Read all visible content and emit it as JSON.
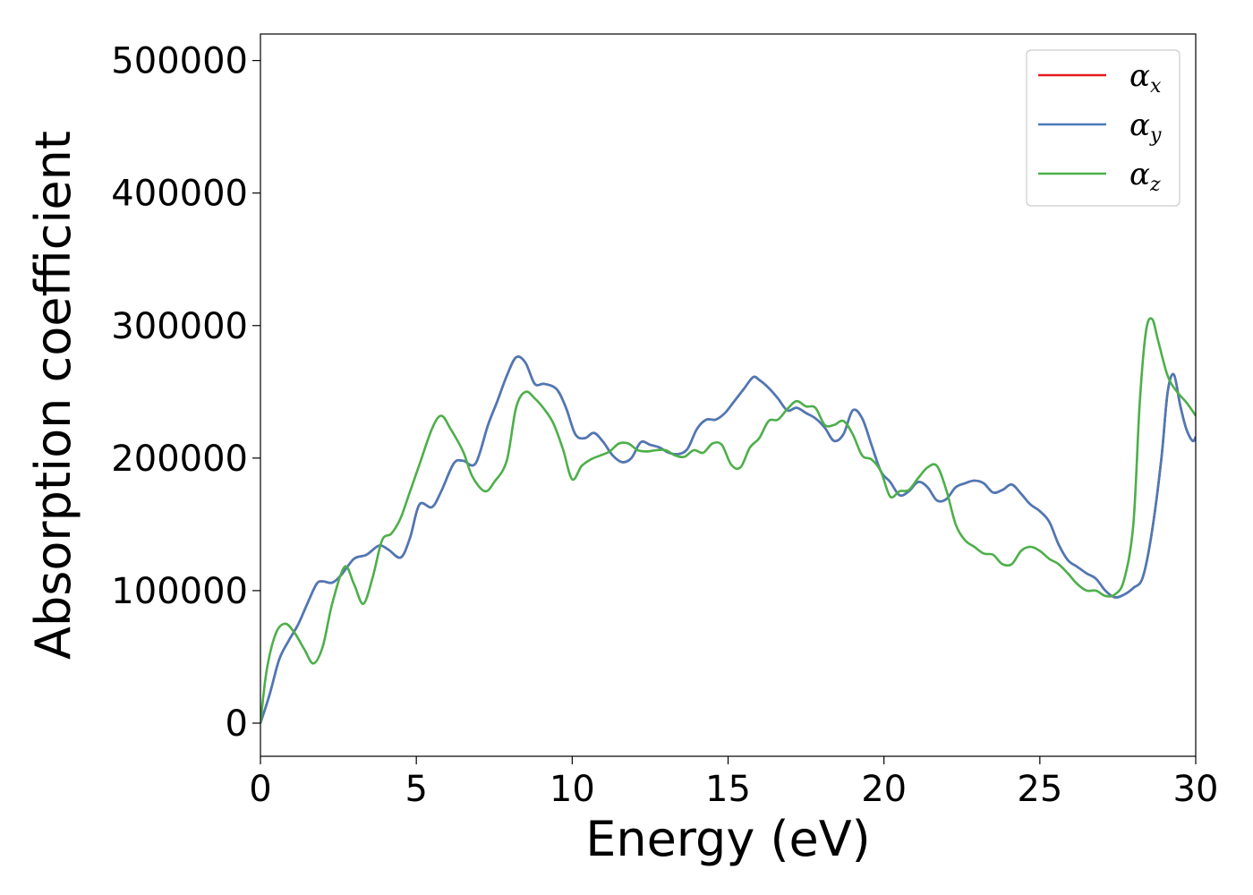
{
  "chart_data": {
    "type": "line",
    "title": "",
    "xlabel": "Energy (eV)",
    "ylabel": "Absorption coefficient",
    "xlim": [
      0,
      30
    ],
    "ylim": [
      -25000,
      520000
    ],
    "xticks": [
      0,
      5,
      10,
      15,
      20,
      25,
      30
    ],
    "yticks": [
      0,
      100000,
      200000,
      300000,
      400000,
      500000
    ],
    "xtick_labels": [
      "0",
      "5",
      "10",
      "15",
      "20",
      "25",
      "30"
    ],
    "ytick_labels": [
      "0",
      "100000",
      "200000",
      "300000",
      "400000",
      "500000"
    ],
    "grid": false,
    "legend_position": "top-right",
    "series": [
      {
        "name": "α_x",
        "legend_symbol": "α",
        "legend_sub": "x",
        "color": "#e41a1c",
        "x": [
          0,
          0.3,
          0.6,
          0.9,
          1.2,
          1.5,
          1.8,
          2.0,
          2.3,
          2.6,
          3.0,
          3.4,
          3.8,
          4.1,
          4.5,
          4.8,
          5.1,
          5.5,
          5.8,
          6.2,
          6.5,
          6.9,
          7.3,
          7.6,
          7.9,
          8.2,
          8.5,
          8.8,
          9.1,
          9.5,
          9.8,
          10.1,
          10.4,
          10.7,
          11.0,
          11.3,
          11.6,
          11.9,
          12.2,
          12.5,
          12.8,
          13.1,
          13.4,
          13.7,
          14.0,
          14.3,
          14.6,
          14.9,
          15.2,
          15.5,
          15.8,
          16.0,
          16.3,
          16.6,
          16.9,
          17.2,
          17.5,
          17.8,
          18.1,
          18.4,
          18.7,
          19.0,
          19.3,
          19.6,
          19.9,
          20.2,
          20.5,
          20.8,
          21.1,
          21.4,
          21.7,
          22.0,
          22.3,
          22.6,
          22.9,
          23.2,
          23.5,
          23.8,
          24.1,
          24.4,
          24.7,
          25.0,
          25.3,
          25.6,
          25.9,
          26.2,
          26.5,
          26.8,
          27.1,
          27.4,
          27.7,
          28.0,
          28.3,
          28.6,
          28.9,
          29.1,
          29.3,
          29.5,
          29.7,
          29.9,
          30.0
        ],
        "y": [
          0,
          22000,
          48000,
          62000,
          74000,
          90000,
          105000,
          107000,
          106000,
          112000,
          124000,
          127000,
          134000,
          131000,
          125000,
          140000,
          165000,
          163000,
          175000,
          196000,
          198000,
          196000,
          225000,
          243000,
          262000,
          276000,
          272000,
          256000,
          256000,
          252000,
          238000,
          218000,
          215000,
          219000,
          212000,
          202000,
          197000,
          200000,
          212000,
          210000,
          208000,
          204000,
          203000,
          207000,
          222000,
          229000,
          229000,
          234000,
          243000,
          252000,
          261000,
          259000,
          253000,
          245000,
          236000,
          238000,
          234000,
          230000,
          223000,
          213000,
          218000,
          236000,
          230000,
          210000,
          190000,
          182000,
          172000,
          175000,
          182000,
          178000,
          168000,
          169000,
          178000,
          181000,
          183000,
          181000,
          174000,
          176000,
          180000,
          173000,
          165000,
          160000,
          152000,
          135000,
          123000,
          118000,
          113000,
          109000,
          100000,
          95000,
          97000,
          102000,
          110000,
          145000,
          200000,
          250000,
          263000,
          240000,
          222000,
          213000,
          216000
        ]
      },
      {
        "name": "α_y",
        "legend_symbol": "α",
        "legend_sub": "y",
        "color": "#4a7ab8",
        "x": [
          0,
          0.3,
          0.6,
          0.9,
          1.2,
          1.5,
          1.8,
          2.0,
          2.3,
          2.6,
          3.0,
          3.4,
          3.8,
          4.1,
          4.5,
          4.8,
          5.1,
          5.5,
          5.8,
          6.2,
          6.5,
          6.9,
          7.3,
          7.6,
          7.9,
          8.2,
          8.5,
          8.8,
          9.1,
          9.5,
          9.8,
          10.1,
          10.4,
          10.7,
          11.0,
          11.3,
          11.6,
          11.9,
          12.2,
          12.5,
          12.8,
          13.1,
          13.4,
          13.7,
          14.0,
          14.3,
          14.6,
          14.9,
          15.2,
          15.5,
          15.8,
          16.0,
          16.3,
          16.6,
          16.9,
          17.2,
          17.5,
          17.8,
          18.1,
          18.4,
          18.7,
          19.0,
          19.3,
          19.6,
          19.9,
          20.2,
          20.5,
          20.8,
          21.1,
          21.4,
          21.7,
          22.0,
          22.3,
          22.6,
          22.9,
          23.2,
          23.5,
          23.8,
          24.1,
          24.4,
          24.7,
          25.0,
          25.3,
          25.6,
          25.9,
          26.2,
          26.5,
          26.8,
          27.1,
          27.4,
          27.7,
          28.0,
          28.3,
          28.6,
          28.9,
          29.1,
          29.3,
          29.5,
          29.7,
          29.9,
          30.0
        ],
        "y": [
          0,
          22000,
          48000,
          62000,
          74000,
          90000,
          105000,
          107000,
          106000,
          112000,
          124000,
          127000,
          134000,
          131000,
          125000,
          140000,
          165000,
          163000,
          175000,
          196000,
          198000,
          196000,
          225000,
          243000,
          262000,
          276000,
          272000,
          256000,
          256000,
          252000,
          238000,
          218000,
          215000,
          219000,
          212000,
          202000,
          197000,
          200000,
          212000,
          210000,
          208000,
          204000,
          203000,
          207000,
          222000,
          229000,
          229000,
          234000,
          243000,
          252000,
          261000,
          259000,
          253000,
          245000,
          236000,
          238000,
          234000,
          230000,
          223000,
          213000,
          218000,
          236000,
          230000,
          210000,
          190000,
          182000,
          172000,
          175000,
          182000,
          178000,
          168000,
          169000,
          178000,
          181000,
          183000,
          181000,
          174000,
          176000,
          180000,
          173000,
          165000,
          160000,
          152000,
          135000,
          123000,
          118000,
          113000,
          109000,
          100000,
          95000,
          97000,
          102000,
          110000,
          145000,
          200000,
          250000,
          263000,
          240000,
          222000,
          213000,
          216000
        ]
      },
      {
        "name": "α_z",
        "legend_symbol": "α",
        "legend_sub": "z",
        "color": "#4daf4a",
        "x": [
          0,
          0.2,
          0.5,
          0.8,
          1.1,
          1.4,
          1.7,
          2.0,
          2.3,
          2.7,
          3.0,
          3.3,
          3.6,
          3.9,
          4.2,
          4.5,
          4.8,
          5.1,
          5.5,
          5.8,
          6.1,
          6.5,
          6.8,
          7.2,
          7.5,
          7.9,
          8.2,
          8.5,
          8.8,
          9.1,
          9.4,
          9.7,
          10.0,
          10.3,
          10.6,
          10.9,
          11.2,
          11.5,
          11.8,
          12.1,
          12.4,
          12.7,
          13.0,
          13.3,
          13.6,
          13.9,
          14.2,
          14.5,
          14.8,
          15.1,
          15.4,
          15.7,
          16.0,
          16.3,
          16.6,
          16.9,
          17.2,
          17.5,
          17.8,
          18.1,
          18.4,
          18.7,
          19.0,
          19.3,
          19.6,
          19.9,
          20.2,
          20.5,
          20.8,
          21.1,
          21.4,
          21.7,
          22.0,
          22.3,
          22.6,
          22.9,
          23.2,
          23.5,
          23.8,
          24.1,
          24.4,
          24.7,
          25.0,
          25.3,
          25.6,
          25.9,
          26.2,
          26.5,
          26.8,
          27.1,
          27.4,
          27.7,
          28.0,
          28.2,
          28.4,
          28.6,
          28.8,
          29.1,
          29.4,
          29.7,
          30.0
        ],
        "y": [
          0,
          40000,
          68000,
          75000,
          68000,
          56000,
          45000,
          58000,
          90000,
          118000,
          105000,
          90000,
          110000,
          138000,
          143000,
          155000,
          175000,
          195000,
          222000,
          232000,
          222000,
          205000,
          186000,
          175000,
          182000,
          198000,
          238000,
          250000,
          245000,
          237000,
          226000,
          207000,
          184000,
          194000,
          199000,
          202000,
          205000,
          211000,
          211000,
          206000,
          205000,
          206000,
          206000,
          202000,
          201000,
          206000,
          204000,
          211000,
          210000,
          195000,
          193000,
          208000,
          215000,
          228000,
          229000,
          237000,
          243000,
          239000,
          238000,
          225000,
          225000,
          228000,
          218000,
          202000,
          199000,
          190000,
          171000,
          175000,
          176000,
          185000,
          193000,
          194000,
          176000,
          150000,
          138000,
          133000,
          128000,
          127000,
          120000,
          120000,
          130000,
          133000,
          130000,
          124000,
          120000,
          113000,
          105000,
          100000,
          100000,
          96000,
          97000,
          108000,
          150000,
          240000,
          295000,
          305000,
          288000,
          262000,
          250000,
          242000,
          232000
        ]
      }
    ]
  }
}
